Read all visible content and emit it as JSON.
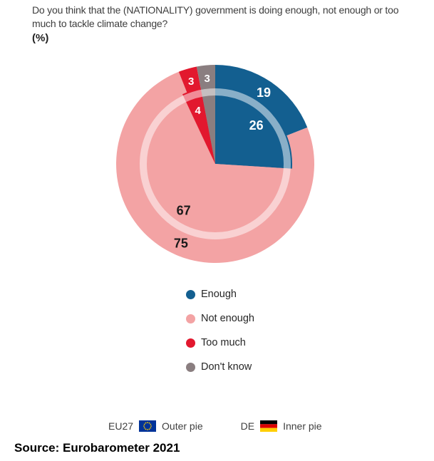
{
  "chart_data": {
    "type": "pie",
    "subtype": "nested",
    "title": "Do you think that the (NATIONALITY) government is doing enough, not enough or too much to tackle climate change?",
    "unit": "(%)",
    "legend_position": "below-chart",
    "rings": [
      {
        "name": "EU27",
        "position": "outer",
        "radius": 139,
        "label_radius": 121,
        "slices": [
          {
            "label": "Enough",
            "value": 19,
            "color": "#135f90",
            "label_color": "#ffffff"
          },
          {
            "label": "Not enough",
            "value": 75,
            "color": "#f3a3a4",
            "label_color": "#1a1a1a"
          },
          {
            "label": "Too much",
            "value": 3,
            "color": "#e2182e",
            "label_color": "#ffffff"
          },
          {
            "label": "Don't know",
            "value": 3,
            "color": "#8a7e80",
            "label_color": "#ffffff"
          }
        ]
      },
      {
        "name": "DE",
        "position": "inner",
        "radius": 108,
        "label_radius": 79,
        "slices": [
          {
            "label": "Enough",
            "value": 26,
            "color": "#135f90",
            "label_color": "#ffffff"
          },
          {
            "label": "Not enough",
            "value": 67,
            "color": "#f3a3a4",
            "label_color": "#1a1a1a"
          },
          {
            "label": "Too much",
            "value": 4,
            "color": "#e2182e",
            "label_color": "#ffffff"
          },
          {
            "label": "Don't know",
            "value": 3,
            "color": "#8a7e80",
            "label_color": "#ffffff",
            "show_label": false
          }
        ]
      }
    ],
    "separator_ring": {
      "radius": 101,
      "width": 10,
      "color": "rgba(255,255,255,0.5)"
    }
  },
  "legend": {
    "items": [
      {
        "label": "Enough",
        "color": "#135f90"
      },
      {
        "label": "Not enough",
        "color": "#f3a3a4"
      },
      {
        "label": "Too much",
        "color": "#e2182e"
      },
      {
        "label": "Don't know",
        "color": "#8a7e80"
      }
    ]
  },
  "pie_key": {
    "outer": {
      "region": "EU27",
      "flag": "eu-flag",
      "desc": "Outer pie"
    },
    "inner": {
      "region": "DE",
      "flag": "germany-flag",
      "desc": "Inner pie"
    }
  },
  "source": "Source: Eurobarometer 2021"
}
